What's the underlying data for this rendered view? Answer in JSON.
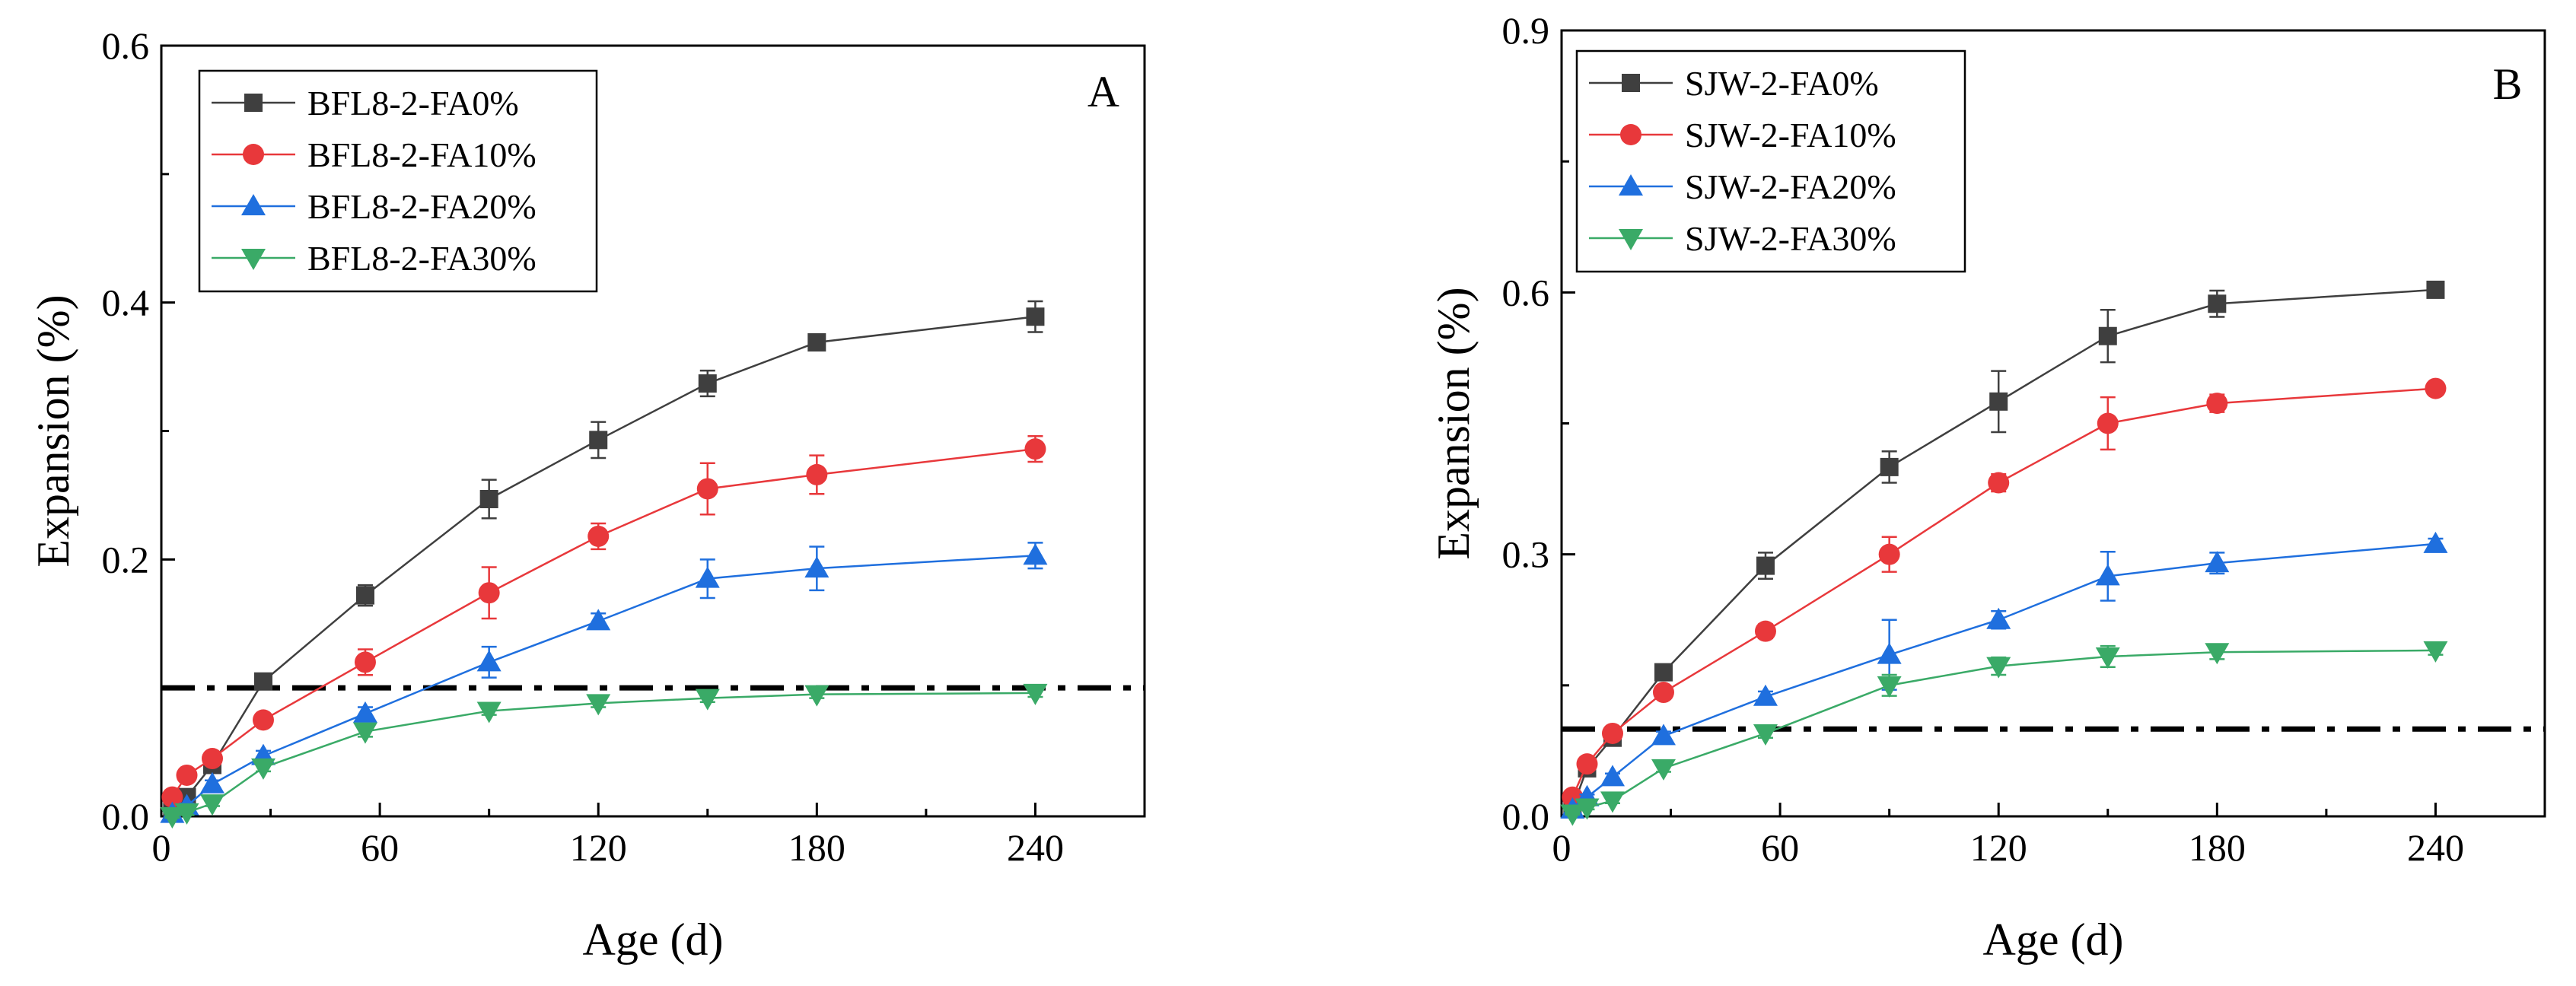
{
  "chart_data": [
    {
      "type": "line",
      "panel_label": "A",
      "xlabel": "Age (d)",
      "ylabel": "Expansion (%)",
      "xlim": [
        0,
        270
      ],
      "ylim": [
        0,
        0.6
      ],
      "xticks": [
        0,
        60,
        120,
        180,
        240
      ],
      "yticks": [
        0.0,
        0.2,
        0.4,
        0.6
      ],
      "xtick_labels": [
        "0",
        "60",
        "120",
        "180",
        "240"
      ],
      "ytick_labels": [
        "0.0",
        "0.2",
        "0.4",
        "0.6"
      ],
      "threshold": 0.1,
      "legend_position": "top-left",
      "series": [
        {
          "name": "BFL8-2-FA0%",
          "marker": "square",
          "color": "#3f3f3f",
          "x": [
            3,
            7,
            14,
            28,
            56,
            90,
            120,
            150,
            180,
            240
          ],
          "y": [
            0.005,
            0.015,
            0.04,
            0.105,
            0.172,
            0.247,
            0.293,
            0.337,
            0.369,
            0.389
          ],
          "err": [
            0.002,
            0.003,
            0.004,
            0.004,
            0.008,
            0.015,
            0.014,
            0.01,
            0.005,
            0.012
          ]
        },
        {
          "name": "BFL8-2-FA10%",
          "marker": "circle",
          "color": "#e8383b",
          "x": [
            3,
            7,
            14,
            28,
            56,
            90,
            120,
            150,
            180,
            240
          ],
          "y": [
            0.015,
            0.032,
            0.045,
            0.075,
            0.12,
            0.174,
            0.218,
            0.255,
            0.266,
            0.286
          ],
          "err": [
            0.002,
            0.003,
            0.004,
            0.004,
            0.01,
            0.02,
            0.01,
            0.02,
            0.015,
            0.01
          ]
        },
        {
          "name": "BFL8-2-FA20%",
          "marker": "triangle-up",
          "color": "#1f6fde",
          "x": [
            3,
            7,
            14,
            28,
            56,
            90,
            120,
            150,
            180,
            240
          ],
          "y": [
            0.002,
            0.008,
            0.025,
            0.047,
            0.08,
            0.12,
            0.152,
            0.185,
            0.193,
            0.203
          ],
          "err": [
            0.002,
            0.002,
            0.003,
            0.004,
            0.005,
            0.012,
            0.006,
            0.015,
            0.017,
            0.01
          ]
        },
        {
          "name": "BFL8-2-FA30%",
          "marker": "triangle-down",
          "color": "#3aaa67",
          "x": [
            3,
            7,
            14,
            28,
            56,
            90,
            120,
            150,
            180,
            240
          ],
          "y": [
            0.0,
            0.003,
            0.01,
            0.038,
            0.066,
            0.082,
            0.088,
            0.092,
            0.095,
            0.096
          ],
          "err": [
            0.001,
            0.002,
            0.002,
            0.003,
            0.004,
            0.003,
            0.003,
            0.003,
            0.003,
            0.003
          ]
        }
      ]
    },
    {
      "type": "line",
      "panel_label": "B",
      "xlabel": "Age (d)",
      "ylabel": "Expansion (%)",
      "xlim": [
        0,
        270
      ],
      "ylim": [
        0,
        0.9
      ],
      "xticks": [
        0,
        60,
        120,
        180,
        240
      ],
      "yticks": [
        0.0,
        0.3,
        0.6,
        0.9
      ],
      "xtick_labels": [
        "0",
        "60",
        "120",
        "180",
        "240"
      ],
      "ytick_labels": [
        "0.0",
        "0.3",
        "0.6",
        "0.9"
      ],
      "threshold": 0.1,
      "legend_position": "top-left",
      "series": [
        {
          "name": "SJW-2-FA0%",
          "marker": "square",
          "color": "#3f3f3f",
          "x": [
            3,
            7,
            14,
            28,
            56,
            90,
            120,
            150,
            180,
            240
          ],
          "y": [
            0.01,
            0.055,
            0.09,
            0.165,
            0.287,
            0.4,
            0.475,
            0.55,
            0.587,
            0.603
          ],
          "err": [
            0.003,
            0.005,
            0.005,
            0.008,
            0.015,
            0.018,
            0.035,
            0.03,
            0.015,
            0.006
          ]
        },
        {
          "name": "SJW-2-FA10%",
          "marker": "circle",
          "color": "#e8383b",
          "x": [
            3,
            7,
            14,
            28,
            56,
            90,
            120,
            150,
            180,
            240
          ],
          "y": [
            0.022,
            0.06,
            0.095,
            0.142,
            0.212,
            0.3,
            0.382,
            0.45,
            0.473,
            0.49
          ],
          "err": [
            0.003,
            0.004,
            0.005,
            0.006,
            0.008,
            0.02,
            0.01,
            0.03,
            0.01,
            0.006
          ]
        },
        {
          "name": "SJW-2-FA20%",
          "marker": "triangle-up",
          "color": "#1f6fde",
          "x": [
            3,
            7,
            14,
            28,
            56,
            90,
            120,
            150,
            180,
            240
          ],
          "y": [
            0.008,
            0.022,
            0.045,
            0.092,
            0.137,
            0.185,
            0.225,
            0.275,
            0.29,
            0.312
          ],
          "err": [
            0.002,
            0.003,
            0.004,
            0.005,
            0.006,
            0.04,
            0.01,
            0.028,
            0.012,
            0.006
          ]
        },
        {
          "name": "SJW-2-FA30%",
          "marker": "triangle-down",
          "color": "#3aaa67",
          "x": [
            3,
            7,
            14,
            28,
            56,
            90,
            120,
            150,
            180,
            240
          ],
          "y": [
            0.003,
            0.01,
            0.018,
            0.055,
            0.095,
            0.15,
            0.172,
            0.183,
            0.188,
            0.19
          ],
          "err": [
            0.001,
            0.002,
            0.003,
            0.004,
            0.005,
            0.012,
            0.01,
            0.012,
            0.008,
            0.005
          ]
        }
      ]
    }
  ]
}
